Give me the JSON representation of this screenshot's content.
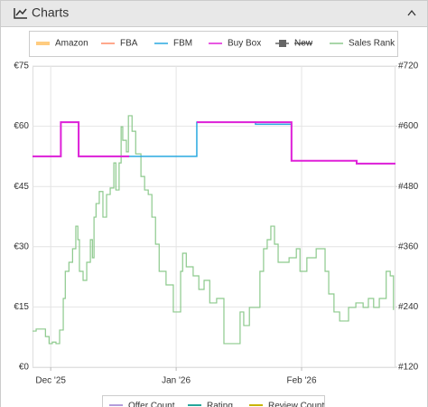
{
  "header": {
    "title": "Charts"
  },
  "chart_data": {
    "type": "line",
    "step": true,
    "grid": true,
    "xlim": [
      -4.5,
      85.2
    ],
    "xticks": [
      {
        "value": 0,
        "label": "Dec '25"
      },
      {
        "value": 31,
        "label": "Jan '26"
      },
      {
        "value": 62,
        "label": "Feb '26"
      }
    ],
    "ylim": [
      0,
      75
    ],
    "yticks": [
      {
        "value": 0,
        "label": "€0"
      },
      {
        "value": 15,
        "label": "€15"
      },
      {
        "value": 30,
        "label": "€30"
      },
      {
        "value": 45,
        "label": "€45"
      },
      {
        "value": 60,
        "label": "€60"
      },
      {
        "value": 75,
        "label": "€75"
      }
    ],
    "y2lim": [
      120,
      720
    ],
    "y2ticks": [
      {
        "value": 120,
        "label": "#120"
      },
      {
        "value": 240,
        "label": "#240"
      },
      {
        "value": 360,
        "label": "#360"
      },
      {
        "value": 480,
        "label": "#480"
      },
      {
        "value": 600,
        "label": "#600"
      },
      {
        "value": 720,
        "label": "#720"
      }
    ],
    "series": [
      {
        "name": "Amazon",
        "color": "#ffcc80",
        "x": [],
        "values": []
      },
      {
        "name": "FBA",
        "color": "#ff8a65",
        "x": [],
        "values": []
      },
      {
        "name": "FBM",
        "color": "#29a9e0",
        "x": [
          -4.5,
          2.5,
          6.9,
          36.1,
          50.6,
          59.5,
          75.6,
          85.2
        ],
        "values": [
          52.5,
          61,
          52.5,
          61,
          60.5,
          51.4,
          50.7,
          50.7
        ]
      },
      {
        "name": "Buy Box",
        "color": "#e020d8",
        "x": [
          -4.5,
          2.5,
          6.9,
          19.4,
          36.1,
          59.5,
          75.6,
          85.2
        ],
        "values": [
          52.5,
          61,
          52.5,
          null,
          61,
          51.4,
          50.7,
          50.7
        ]
      },
      {
        "name": "New",
        "color": "#666666",
        "hidden": true,
        "x": [],
        "values": []
      },
      {
        "name": "Sales Rank",
        "color": "#8cc98c",
        "axis": "y2",
        "x": [
          -4.5,
          -3.6,
          -1.3,
          -0.4,
          0.4,
          1.3,
          2.2,
          3.1,
          3.6,
          4.5,
          5.4,
          6.2,
          6.7,
          7.1,
          8.0,
          8.9,
          9.8,
          10.3,
          10.7,
          11.2,
          12.0,
          12.9,
          13.8,
          14.7,
          15.6,
          16.1,
          16.9,
          17.4,
          17.8,
          18.7,
          19.2,
          20.1,
          21.0,
          22.3,
          23.2,
          24.1,
          25.0,
          25.9,
          26.8,
          28.5,
          30.3,
          32.1,
          32.6,
          33.5,
          35.2,
          36.6,
          37.9,
          39.3,
          41.0,
          42.8,
          46.8,
          47.7,
          49.1,
          51.7,
          52.6,
          53.5,
          54.4,
          55.3,
          56.2,
          58.9,
          60.7,
          61.6,
          63.3,
          65.6,
          67.8,
          68.7,
          70.0,
          71.4,
          73.6,
          75.4,
          77.2,
          78.5,
          79.8,
          81.2,
          82.9,
          83.9,
          84.7
        ],
        "values": [
          192,
          196,
          181,
          167,
          170,
          167,
          194,
          257,
          311,
          329,
          356,
          401,
          374,
          311,
          293,
          329,
          374,
          338,
          419,
          446,
          470,
          419,
          464,
          477,
          527,
          473,
          527,
          599,
          572,
          549,
          621,
          590,
          545,
          500,
          473,
          464,
          419,
          365,
          311,
          284,
          230,
          311,
          347,
          320,
          302,
          275,
          293,
          248,
          257,
          167,
          230,
          203,
          239,
          311,
          356,
          374,
          401,
          365,
          329,
          338,
          356,
          311,
          338,
          356,
          311,
          266,
          230,
          212,
          239,
          248,
          239,
          257,
          239,
          257,
          311,
          302,
          234
        ]
      }
    ],
    "extra_series": [
      {
        "name": "Offer Count",
        "color": "#b39ddb"
      },
      {
        "name": "Rating",
        "color": "#26a69a"
      },
      {
        "name": "Review Count",
        "color": "#c8b400"
      }
    ]
  }
}
